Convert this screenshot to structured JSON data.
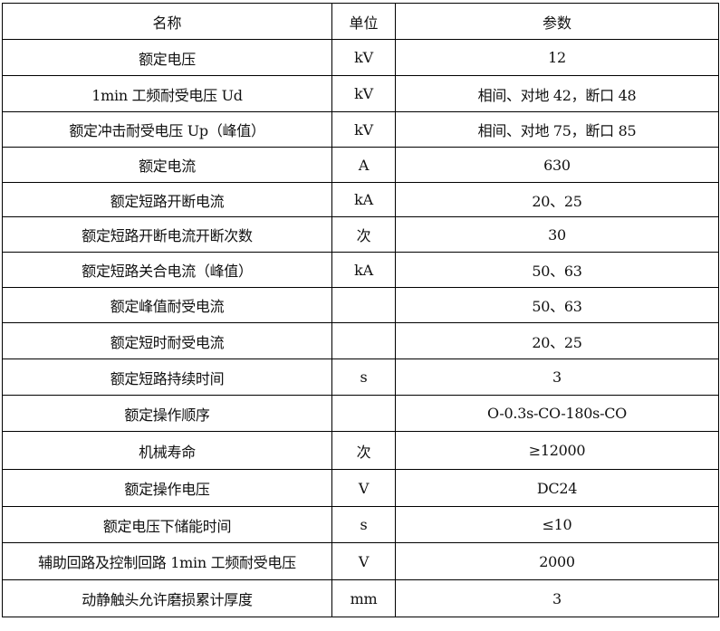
{
  "table": {
    "headers": [
      "名称",
      "单位",
      "参数"
    ],
    "rows": [
      {
        "name": "额定电压",
        "unit": "kV",
        "value": "12"
      },
      {
        "name": "1min 工频耐受电压 Ud",
        "unit": "kV",
        "value": "相间、对地 42，断口 48"
      },
      {
        "name": "额定冲击耐受电压 Up（峰值）",
        "unit": "kV",
        "value": "相间、对地 75，断口 85"
      },
      {
        "name": "额定电流",
        "unit": "A",
        "value": "630"
      },
      {
        "name": "额定短路开断电流",
        "unit": "kA",
        "value": "20、25"
      },
      {
        "name": "额定短路开断电流开断次数",
        "unit": "次",
        "value": "30"
      },
      {
        "name": "额定短路关合电流（峰值）",
        "unit": "kA",
        "value": "50、63"
      },
      {
        "name": "额定峰值耐受电流",
        "unit": "",
        "value": "50、63"
      },
      {
        "name": "额定短时耐受电流",
        "unit": "",
        "value": "20、25"
      },
      {
        "name": "额定短路持续时间",
        "unit": "s",
        "value": "3"
      },
      {
        "name": "额定操作顺序",
        "unit": "",
        "value": "O-0.3s-CO-180s-CO"
      },
      {
        "name": "机械寿命",
        "unit": "次",
        "value": "≥12000"
      },
      {
        "name": "额定操作电压",
        "unit": "V",
        "value": "DC24"
      },
      {
        "name": "额定电压下储能时间",
        "unit": "s",
        "value": "≤10"
      },
      {
        "name": "辅助回路及控制回路 1min 工频耐受电压",
        "unit": "V",
        "value": "2000"
      },
      {
        "name": "动静触头允许磨损累计厚度",
        "unit": "mm",
        "value": "3"
      }
    ]
  }
}
